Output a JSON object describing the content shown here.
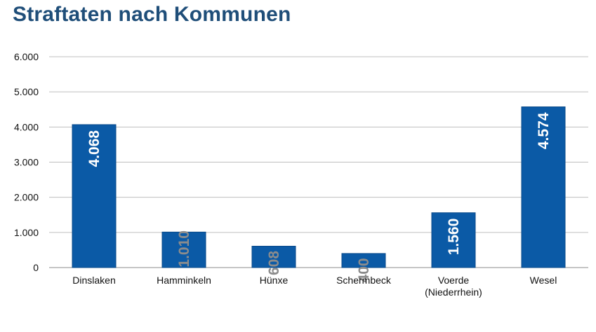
{
  "chart_data": {
    "type": "bar",
    "title": "Straftaten nach Kommunen",
    "categories": [
      "Dinslaken",
      "Hamminkeln",
      "Hünxe",
      "Schermbeck",
      "Voerde (Niederrhein)",
      "Wesel"
    ],
    "values": [
      4068,
      1010,
      608,
      400,
      1560,
      4574
    ],
    "data_labels": [
      "4.068",
      "1.010",
      "608",
      "400",
      "1.560",
      "4.574"
    ],
    "y_ticks": [
      "0",
      "1.000",
      "2.000",
      "3.000",
      "4.000",
      "5.000",
      "6.000"
    ],
    "ylim": [
      0,
      6000
    ],
    "grid": true,
    "legend": "none",
    "colors": {
      "bar": "#0b5aa6",
      "bar_edge": "#0a4a8a",
      "title": "#1f4e79",
      "label_inside": "#ffffff",
      "label_outside": "#8c8c8c",
      "grid": "#bfbfbf",
      "axis": "#8c8c8c"
    }
  }
}
